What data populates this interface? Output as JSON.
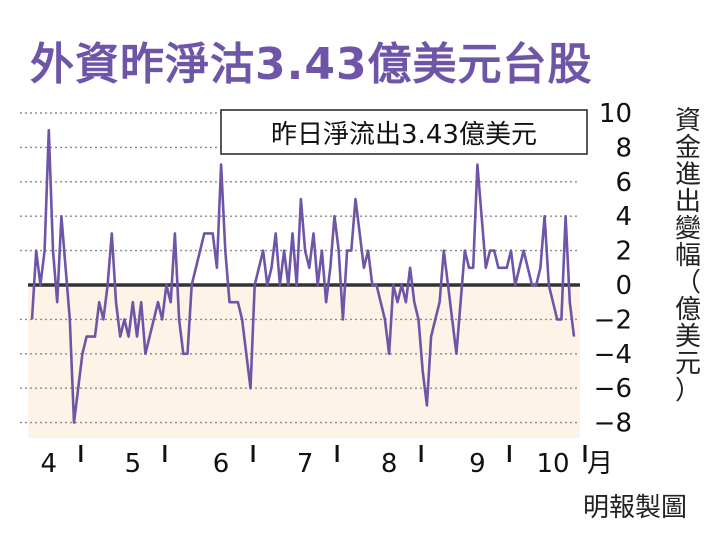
{
  "title": "外資昨淨沽3.43億美元台股",
  "credit": "明報製圖",
  "chart_data": {
    "type": "line",
    "annotation": "昨日淨流出3.43億美元",
    "ylabel": "資金進出變幅（億美元）",
    "ylim": [
      -9,
      11
    ],
    "yticks": [
      10,
      8,
      6,
      4,
      2,
      0,
      -2,
      -4,
      -6,
      -8
    ],
    "ytick_labels": [
      "10",
      "8",
      "6",
      "4",
      "2",
      "0",
      "−2",
      "−4",
      "−6",
      "−8"
    ],
    "xticks": [
      {
        "label": "4",
        "idx": 4
      },
      {
        "label": "5",
        "idx": 24
      },
      {
        "label": "6",
        "idx": 45
      },
      {
        "label": "7",
        "idx": 65
      },
      {
        "label": "8",
        "idx": 85
      },
      {
        "label": "9",
        "idx": 106
      },
      {
        "label": "10",
        "idx": 124
      }
    ],
    "xlabel_suffix": "月",
    "series": [
      {
        "values": [
          -2,
          2,
          0,
          2,
          9,
          2,
          -1,
          4,
          1,
          -2,
          -8,
          -6,
          -4,
          -3,
          -3,
          -3,
          -1,
          -2,
          0,
          3,
          -1,
          -3,
          -2,
          -3,
          -1,
          -3,
          -1,
          -4,
          -3,
          -2,
          -1,
          -2,
          0,
          -1,
          3,
          -2,
          -4,
          -4,
          0,
          1,
          2,
          3,
          3,
          3,
          1,
          7,
          2,
          -1,
          -1,
          -1,
          -2,
          -4,
          -6,
          0,
          1,
          2,
          0,
          1,
          3,
          0,
          2,
          0,
          3,
          0,
          5,
          2,
          1,
          3,
          0,
          2,
          -1,
          1,
          4,
          2,
          -2,
          2,
          2,
          5,
          3,
          1,
          2,
          0,
          0,
          -1,
          -2,
          -4,
          0,
          -1,
          0,
          -1,
          1,
          -1,
          -2,
          -5,
          -7,
          -3,
          -2,
          -1,
          2,
          0,
          -2,
          -4,
          -1,
          2,
          1,
          1,
          7,
          4,
          1,
          2,
          2,
          1,
          1,
          1,
          2,
          0,
          1,
          2,
          1,
          0,
          0,
          1,
          4,
          0,
          -1,
          -2,
          -2,
          4,
          -1,
          -3
        ]
      }
    ],
    "colors": {
      "line": "#6f55a8",
      "zero_line": "#333333",
      "negative_fill": "#fdf3e7",
      "grid": "#8a8a8a"
    }
  }
}
